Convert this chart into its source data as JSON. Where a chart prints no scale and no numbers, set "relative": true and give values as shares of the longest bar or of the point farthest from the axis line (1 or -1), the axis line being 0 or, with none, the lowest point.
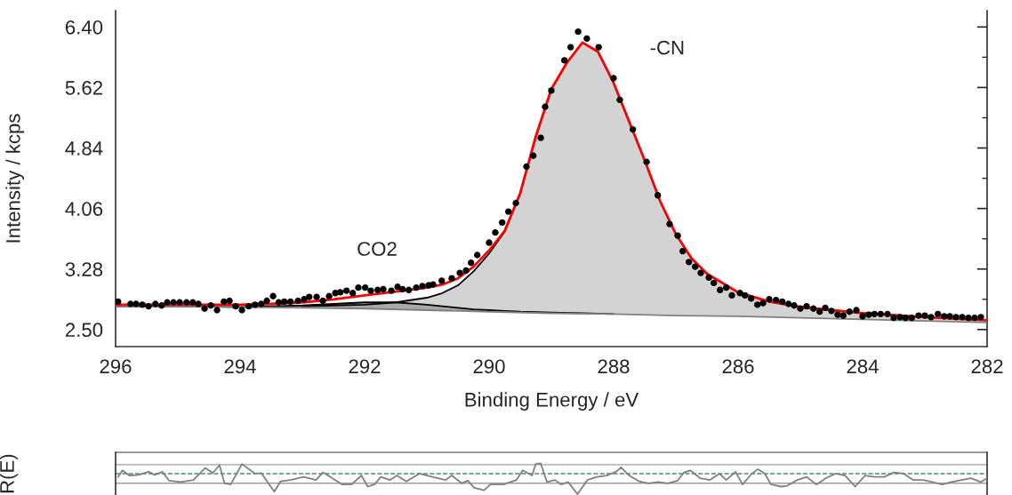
{
  "chart_data": [
    {
      "type": "scatter",
      "xlabel": "Binding Energy / eV",
      "ylabel": "Intensity / kcps",
      "xlim": [
        296,
        282
      ],
      "xticks": [
        296,
        294,
        292,
        290,
        288,
        286,
        284,
        282
      ],
      "ylim": [
        2.28,
        6.61
      ],
      "yticks": [
        {
          "value": 2.5,
          "label": "2.50"
        },
        3.28,
        4.06,
        4.84,
        5.62,
        {
          "value": 6.4,
          "label": "6.40"
        }
      ],
      "annotations": [
        "CO2",
        "-CN"
      ],
      "series": [
        {
          "type": "area",
          "color": "#d3d3d3",
          "x": [
            293,
            292.5,
            292,
            291.5,
            291,
            290.75,
            290.5,
            290.25,
            290,
            289.75,
            289.5,
            289.25,
            289,
            288.75,
            288.5,
            288.25,
            288,
            287.75,
            287.5,
            287.25,
            287,
            286.75,
            286.5,
            286,
            285.5,
            285,
            284,
            283,
            282
          ],
          "values": [
            2.8,
            2.81,
            2.82,
            2.85,
            2.91,
            2.97,
            3.07,
            3.25,
            3.48,
            3.76,
            4.25,
            4.98,
            5.6,
            5.94,
            6.2,
            6.08,
            5.68,
            5.18,
            4.68,
            4.15,
            3.73,
            3.42,
            3.22,
            2.98,
            2.86,
            2.79,
            2.71,
            2.66,
            2.62
          ]
        },
        {
          "type": "area",
          "color": "#a9a9a9",
          "x": [
            296,
            295,
            294,
            293.5,
            293,
            292.5,
            292,
            291.5,
            291,
            290.75,
            290.5,
            290.25,
            290,
            289.75,
            289.5,
            289,
            288.5,
            288
          ],
          "values": [
            2.8,
            2.8,
            2.79,
            2.8,
            2.81,
            2.83,
            2.85,
            2.85,
            2.82,
            2.8,
            2.78,
            2.76,
            2.75,
            2.74,
            2.73,
            2.72,
            2.71,
            2.7
          ]
        },
        {
          "type": "line",
          "color": "#808080",
          "x": [
            296,
            295,
            294,
            293,
            292,
            291,
            290,
            289,
            288,
            287,
            286,
            285,
            284,
            283,
            282
          ],
          "values": [
            2.8,
            2.8,
            2.79,
            2.78,
            2.77,
            2.75,
            2.73,
            2.71,
            2.7,
            2.68,
            2.67,
            2.65,
            2.63,
            2.61,
            2.59
          ]
        },
        {
          "type": "line",
          "color": "#ff0000",
          "x": [
            296,
            295,
            294,
            293.5,
            293,
            292.5,
            292,
            291.5,
            291,
            290.75,
            290.5,
            290.25,
            290,
            289.75,
            289.5,
            289.25,
            289,
            288.75,
            288.5,
            288.25,
            288,
            287.75,
            287.5,
            287.25,
            287,
            286.75,
            286.5,
            286,
            285.5,
            285,
            284,
            283,
            282
          ],
          "values": [
            2.82,
            2.82,
            2.82,
            2.83,
            2.85,
            2.89,
            2.94,
            2.99,
            3.04,
            3.08,
            3.16,
            3.31,
            3.52,
            3.77,
            4.26,
            4.99,
            5.6,
            5.94,
            6.2,
            6.08,
            5.68,
            5.18,
            4.68,
            4.15,
            3.73,
            3.42,
            3.22,
            2.98,
            2.86,
            2.79,
            2.71,
            2.66,
            2.62
          ]
        },
        {
          "type": "scatter",
          "color": "#000000",
          "marker": "circle",
          "x": [
            295.96,
            295.76,
            295.67,
            295.57,
            295.47,
            295.36,
            295.26,
            295.17,
            295.07,
            294.97,
            294.86,
            294.76,
            294.67,
            294.57,
            294.47,
            294.37,
            294.26,
            294.17,
            294.07,
            293.97,
            293.86,
            293.76,
            293.66,
            293.57,
            293.47,
            293.38,
            293.29,
            293.19,
            293.07,
            292.97,
            292.89,
            292.77,
            292.67,
            292.57,
            292.47,
            292.39,
            292.29,
            292.19,
            292.1,
            291.99,
            291.9,
            291.79,
            291.7,
            291.57,
            291.47,
            291.39,
            291.29,
            291.17,
            291.07,
            290.97,
            290.9,
            290.76,
            290.6,
            290.47,
            290.37,
            290.29,
            290.19,
            290.0,
            289.9,
            289.79,
            289.69,
            289.57,
            289.4,
            289.29,
            289.17,
            289.1,
            289.0,
            288.79,
            288.69,
            288.57,
            288.43,
            288.24,
            288.0,
            287.9,
            287.69,
            287.47,
            287.29,
            287.1,
            286.97,
            286.89,
            286.79,
            286.69,
            286.6,
            286.47,
            286.39,
            286.29,
            286.19,
            286.1,
            285.97,
            285.89,
            285.79,
            285.69,
            285.6,
            285.5,
            285.39,
            285.29,
            285.19,
            285.1,
            285.0,
            284.9,
            284.79,
            284.69,
            284.6,
            284.5,
            284.4,
            284.31,
            284.21,
            284.1,
            284.0,
            283.9,
            283.81,
            283.71,
            283.6,
            283.5,
            283.4,
            283.31,
            283.21,
            283.1,
            283.0,
            282.9,
            282.79,
            282.69,
            282.6,
            282.5,
            282.4,
            282.3,
            282.2,
            282.1
          ],
          "values": [
            2.86,
            2.83,
            2.83,
            2.82,
            2.8,
            2.83,
            2.81,
            2.85,
            2.85,
            2.85,
            2.85,
            2.85,
            2.83,
            2.77,
            2.81,
            2.75,
            2.86,
            2.87,
            2.8,
            2.75,
            2.8,
            2.82,
            2.83,
            2.87,
            2.93,
            2.85,
            2.86,
            2.86,
            2.87,
            2.89,
            2.92,
            2.92,
            2.87,
            2.93,
            2.97,
            2.98,
            3.0,
            2.97,
            3.04,
            3.04,
            3.0,
            3.01,
            3.02,
            3.0,
            3.05,
            3.02,
            3.01,
            3.04,
            3.06,
            3.07,
            3.08,
            3.13,
            3.16,
            3.23,
            3.26,
            3.36,
            3.46,
            3.62,
            3.75,
            3.88,
            4.02,
            4.13,
            4.6,
            4.74,
            4.97,
            5.37,
            5.58,
            5.97,
            6.14,
            6.34,
            6.25,
            6.14,
            5.74,
            5.46,
            5.08,
            4.66,
            4.23,
            3.86,
            3.71,
            3.51,
            3.37,
            3.31,
            3.23,
            3.17,
            3.1,
            3.01,
            3.04,
            2.94,
            2.97,
            2.94,
            2.9,
            2.82,
            2.84,
            2.89,
            2.88,
            2.86,
            2.83,
            2.81,
            2.77,
            2.8,
            2.77,
            2.73,
            2.78,
            2.74,
            2.69,
            2.68,
            2.73,
            2.75,
            2.67,
            2.69,
            2.7,
            2.7,
            2.7,
            2.65,
            2.66,
            2.65,
            2.65,
            2.68,
            2.68,
            2.66,
            2.7,
            2.67,
            2.67,
            2.66,
            2.66,
            2.65,
            2.65,
            2.66
          ]
        }
      ]
    },
    {
      "type": "line",
      "relative": true,
      "ylabel": "R(E)",
      "xlim": [
        296,
        282
      ],
      "ref_lines": [
        {
          "axis": "y",
          "value": 0.44,
          "color": "#a0a0a0",
          "line_style": "solid"
        },
        {
          "axis": "y",
          "value": 0,
          "color": "#4a8a8a",
          "line_style": "dashed"
        },
        {
          "axis": "y",
          "value": -0.47,
          "color": "#a0a0a0",
          "line_style": "solid"
        }
      ],
      "series": [
        {
          "color": "#808080",
          "x": [
            295.96,
            295.89,
            295.78,
            295.63,
            295.47,
            295.37,
            295.25,
            295.14,
            294.95,
            294.75,
            294.56,
            294.44,
            294.33,
            294.25,
            294.15,
            293.97,
            293.76,
            293.66,
            293.45,
            293.35,
            293.19,
            292.98,
            292.78,
            292.67,
            292.52,
            292.36,
            292.21,
            292.05,
            291.95,
            291.84,
            291.74,
            291.59,
            291.48,
            291.33,
            291.12,
            290.91,
            290.7,
            290.6,
            290.44,
            290.34,
            290.24,
            290.08,
            289.98,
            289.77,
            289.56,
            289.46,
            289.31,
            289.25,
            289.17,
            289.07,
            288.94,
            288.84,
            288.73,
            288.58,
            288.42,
            288.27,
            288.11,
            287.96,
            287.88,
            287.75,
            287.59,
            287.44,
            287.28,
            287.13,
            286.97,
            286.87,
            286.77,
            286.61,
            286.45,
            286.3,
            286.19,
            286.04,
            285.93,
            285.78,
            285.68,
            285.57,
            285.47,
            285.31,
            285.21,
            285.05,
            284.9,
            284.74,
            284.59,
            284.43,
            284.28,
            284.12,
            283.96,
            283.81,
            283.65,
            283.5,
            283.34,
            283.19,
            283.03,
            282.88,
            282.72,
            282.57,
            282.41,
            282.26,
            282.1,
            282.0
          ],
          "values": [
            -0.16,
            0.16,
            -0.09,
            -0.06,
            0.09,
            -0.06,
            0.09,
            -0.34,
            -0.41,
            -0.31,
            0.28,
            0.03,
            0.41,
            -0.47,
            -0.53,
            0.47,
            0,
            0.03,
            -0.88,
            -0.38,
            -0.31,
            -0.16,
            -0.31,
            0.06,
            -0.22,
            -0.53,
            -0.53,
            -0.09,
            -0.63,
            -0.53,
            -0.16,
            -0.31,
            -0.09,
            -0.38,
            0,
            -0.16,
            -0.31,
            -0.09,
            -0.47,
            -0.34,
            -0.69,
            -0.81,
            -0.53,
            -0.53,
            -0.31,
            0.16,
            -0.09,
            0.47,
            0.5,
            -0.41,
            -0.31,
            -0.53,
            -0.41,
            -1,
            -0.31,
            -0.16,
            -0.09,
            0.09,
            0.31,
            -0.09,
            -0.38,
            -0.47,
            -0.41,
            -0.47,
            -0.34,
            0.06,
            0.16,
            -0.22,
            -0.31,
            0,
            -0.31,
            0.09,
            -0.53,
            0,
            0.22,
            0,
            -0.53,
            -0.63,
            -0.59,
            -0.31,
            -0.16,
            -0.53,
            -0.22,
            0,
            -0.09,
            -0.63,
            -0.09,
            -0.16,
            -0.16,
            0.06,
            0,
            -0.31,
            -0.31,
            -0.41,
            -0.53,
            -0.41,
            -0.31,
            -0.22,
            -0.41,
            -0.22
          ]
        }
      ]
    }
  ]
}
